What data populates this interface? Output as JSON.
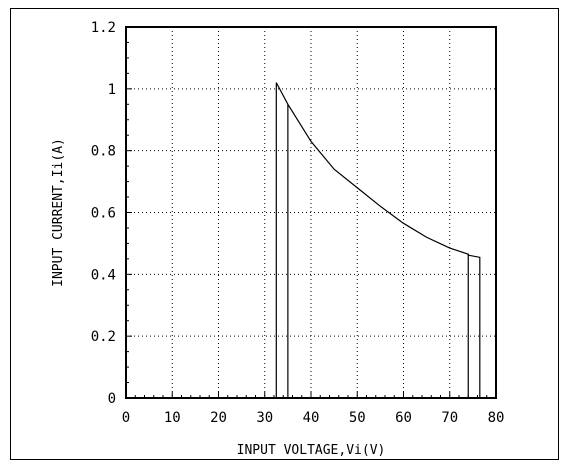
{
  "chart_data": {
    "type": "line",
    "title": "",
    "xlabel": "INPUT VOLTAGE,Vi(V)",
    "ylabel": "INPUT CURRENT,Ii(A)",
    "xlim": [
      0,
      80
    ],
    "ylim": [
      0,
      1.2
    ],
    "x_ticks": [
      0,
      10,
      20,
      30,
      40,
      50,
      60,
      70,
      80
    ],
    "x_tick_labels": [
      "0",
      "10",
      "20",
      "30",
      "40",
      "50",
      "60",
      "70",
      "80"
    ],
    "y_ticks": [
      0,
      0.2,
      0.4,
      0.6,
      0.8,
      1.0,
      1.2
    ],
    "y_tick_labels": [
      "0",
      "0.2",
      "0.4",
      "0.6",
      "0.8",
      "1",
      "1.2"
    ],
    "grid": true,
    "legend": "none",
    "series": [
      {
        "x": [
          32.5,
          32.5,
          35,
          40,
          45,
          50,
          55,
          60,
          65,
          70,
          74,
          74,
          76.5,
          76.5
        ],
        "y": [
          0,
          1.02,
          0.95,
          0.83,
          0.74,
          0.68,
          0.62,
          0.565,
          0.52,
          0.485,
          0.465,
          0.462,
          0.455,
          0
        ]
      },
      {
        "x": [
          35,
          35
        ],
        "y": [
          0,
          0.95
        ]
      },
      {
        "x": [
          74,
          74
        ],
        "y": [
          0,
          0.465
        ]
      }
    ],
    "colors": {
      "line": "#000000",
      "grid": "#000000"
    }
  }
}
